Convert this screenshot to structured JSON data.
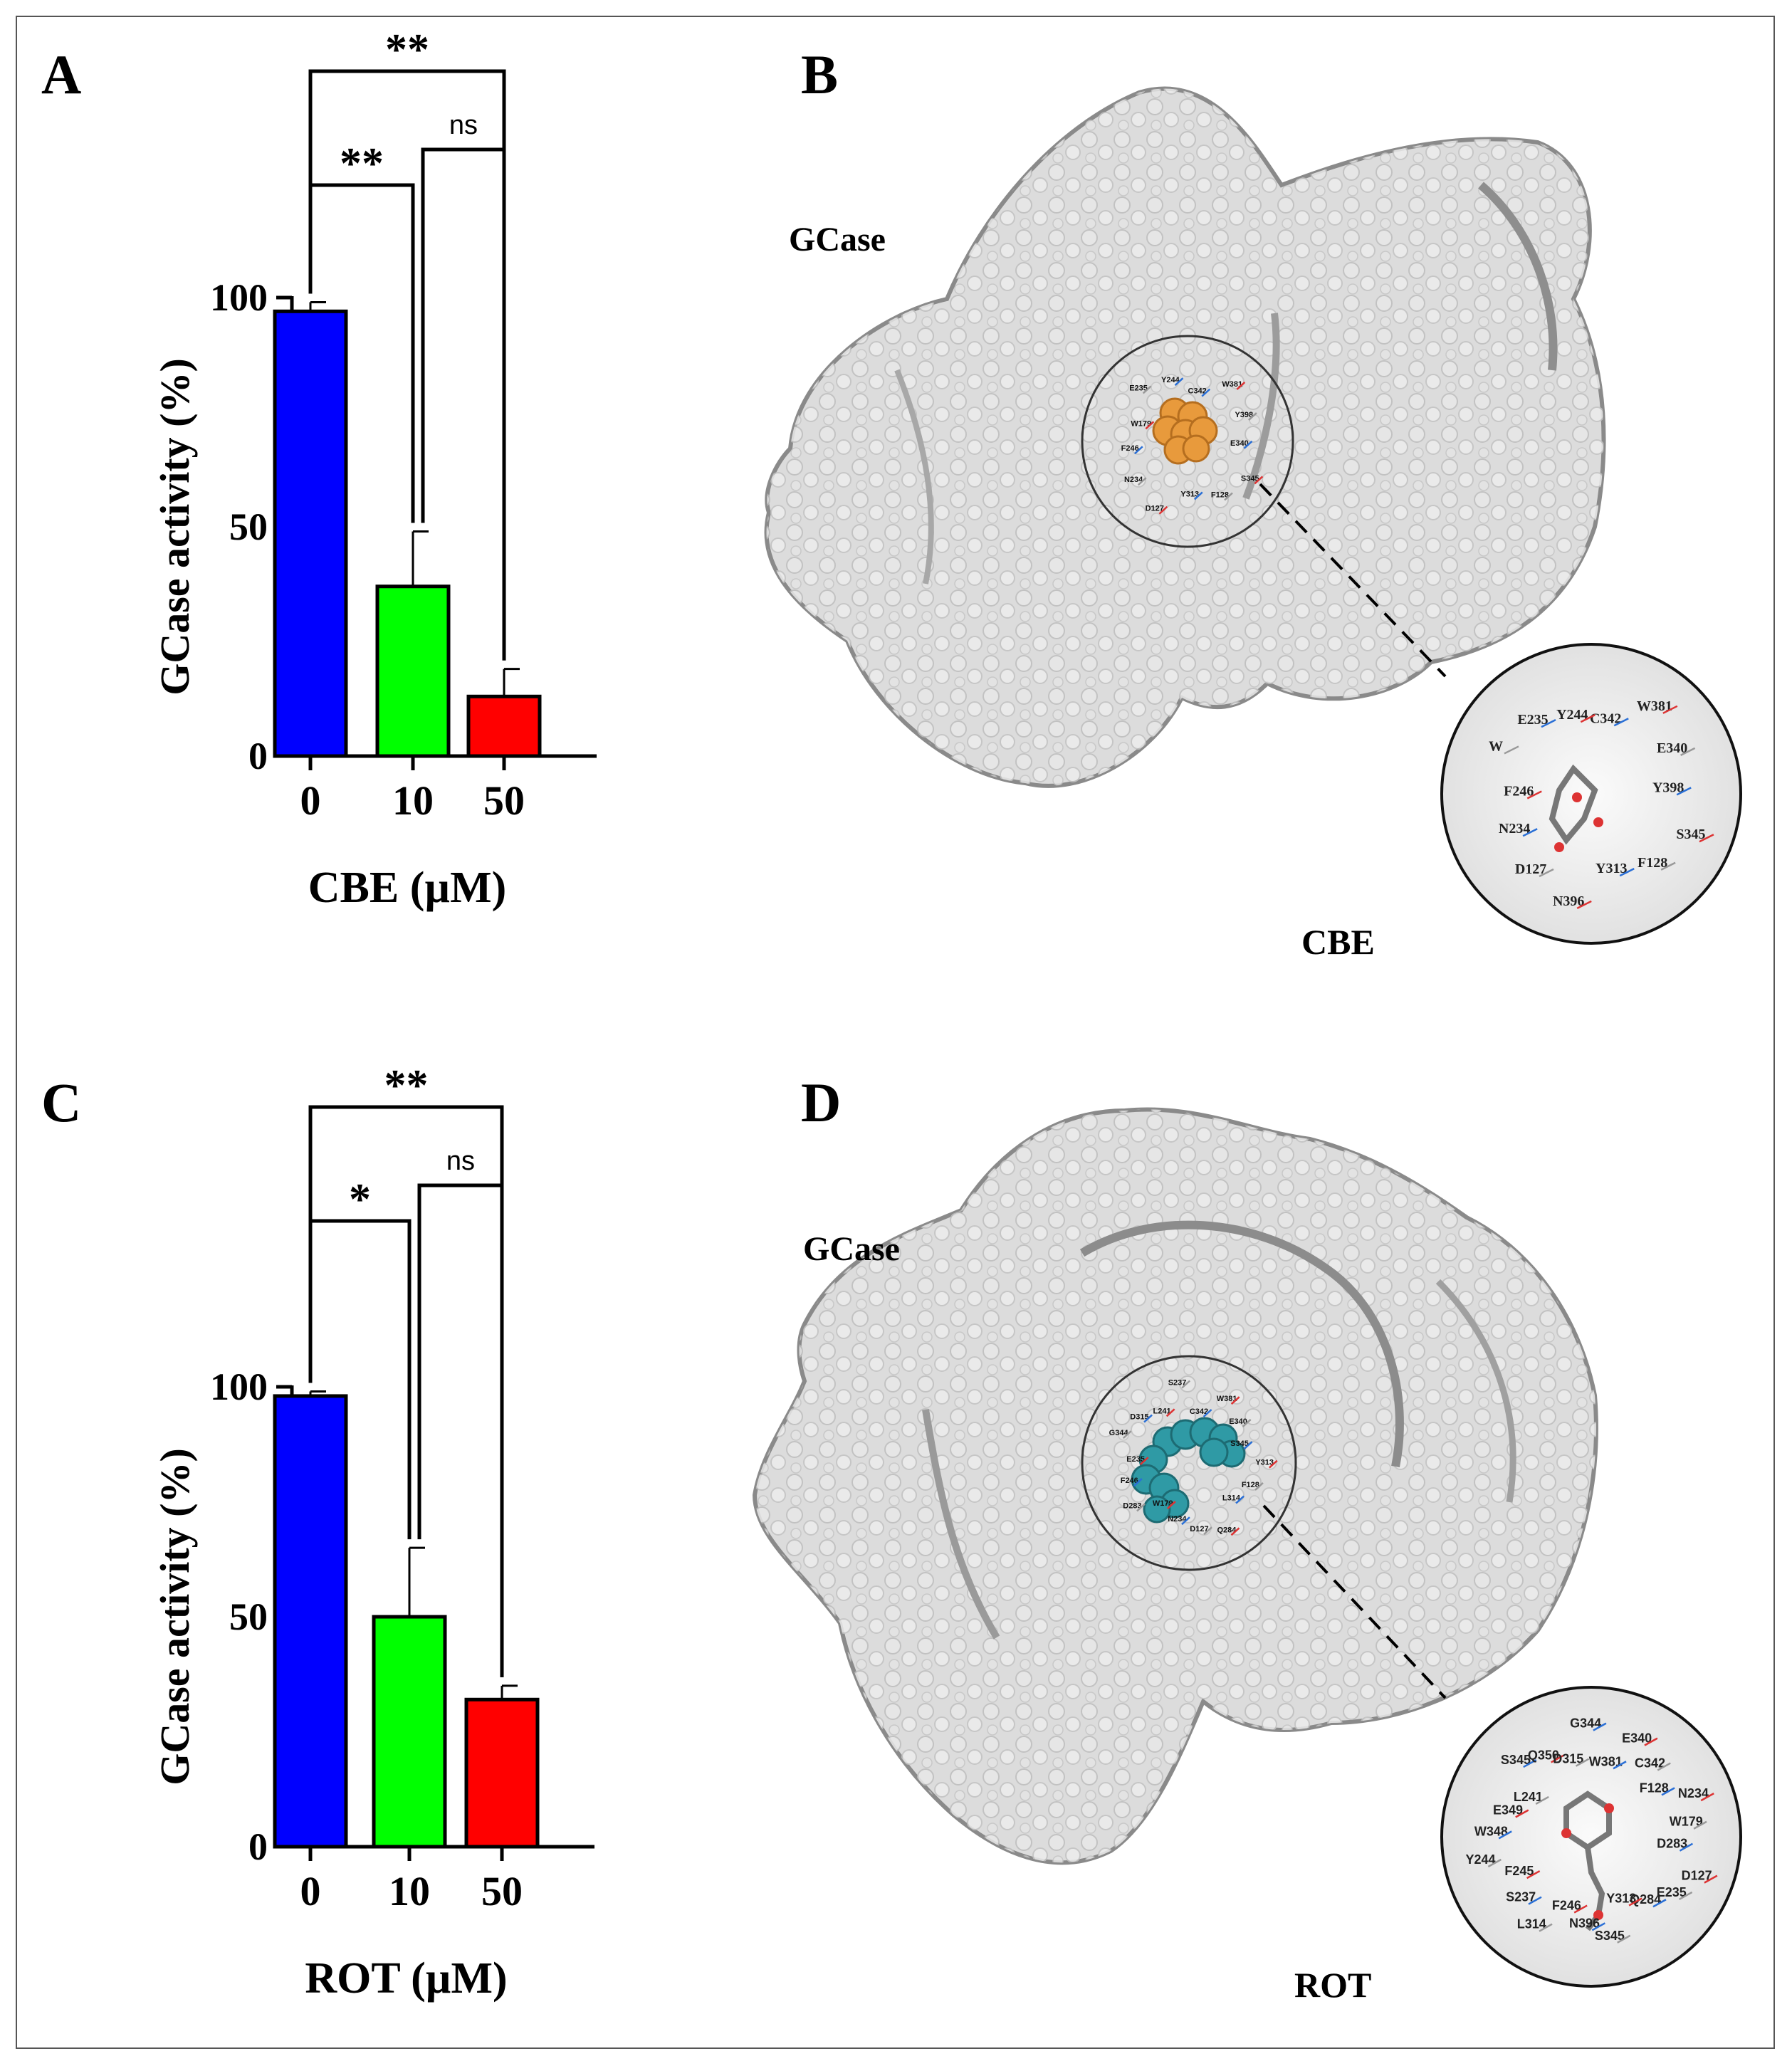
{
  "panels": {
    "A": "A",
    "B": "B",
    "C": "C",
    "D": "D"
  },
  "chart_data": [
    {
      "type": "bar",
      "panel": "A",
      "categories": [
        "0",
        "10",
        "50"
      ],
      "values": [
        97,
        37,
        13
      ],
      "errors": [
        2,
        12,
        6
      ],
      "colors": [
        "#0000ff",
        "#00ff00",
        "#ff0000"
      ],
      "ylabel": "GCase activity (%)",
      "xlabel": "CBE (µM)",
      "yticks": [
        0,
        50,
        100
      ],
      "ylim": [
        0,
        100
      ],
      "significance": [
        {
          "from": "0",
          "to": "10",
          "label": "**"
        },
        {
          "from": "10",
          "to": "50",
          "label": "ns"
        },
        {
          "from": "0",
          "to": "50",
          "label": "**"
        }
      ]
    },
    {
      "type": "bar",
      "panel": "C",
      "categories": [
        "0",
        "10",
        "50"
      ],
      "values": [
        98,
        50,
        32
      ],
      "errors": [
        1,
        15,
        3
      ],
      "colors": [
        "#0000ff",
        "#00ff00",
        "#ff0000"
      ],
      "ylabel": "GCase activity (%)",
      "xlabel": "ROT (µM)",
      "yticks": [
        0,
        50,
        100
      ],
      "ylim": [
        0,
        100
      ],
      "significance": [
        {
          "from": "0",
          "to": "10",
          "label": "*"
        },
        {
          "from": "10",
          "to": "50",
          "label": "ns"
        },
        {
          "from": "0",
          "to": "50",
          "label": "**"
        }
      ]
    }
  ],
  "structures": [
    {
      "panel": "B",
      "protein_label": "GCase",
      "ligand_label": "CBE",
      "ligand_color": "#e89a3c",
      "binding_site_residues": [
        "C342",
        "W381",
        "Y398",
        "E340",
        "S345",
        "F128",
        "Y313",
        "D127",
        "N234",
        "F246",
        "W179",
        "E235",
        "Y244"
      ],
      "zoom_residues": [
        "C342",
        "W381",
        "E340",
        "Y398",
        "S345",
        "F128",
        "Y313",
        "N396",
        "D127",
        "N234",
        "F246",
        "W",
        "E235",
        "Y244"
      ]
    },
    {
      "panel": "D",
      "protein_label": "GCase",
      "ligand_label": "ROT",
      "ligand_color": "#2f9aa5",
      "binding_site_residues": [
        "C342",
        "W381",
        "E340",
        "S345",
        "Y313",
        "F128",
        "L314",
        "Q284",
        "D127",
        "N234",
        "W179",
        "D283",
        "F246",
        "E235",
        "G344",
        "D315",
        "L241",
        "S237"
      ],
      "zoom_residues": [
        "W381",
        "E340",
        "C342",
        "F128",
        "N234",
        "W179",
        "D283",
        "D127",
        "E235",
        "Q284",
        "Y313",
        "S345",
        "N396",
        "F246",
        "L314",
        "S237",
        "F245",
        "Y244",
        "W348",
        "E349",
        "L241",
        "S345",
        "Q350",
        "D315",
        "G344"
      ]
    }
  ]
}
